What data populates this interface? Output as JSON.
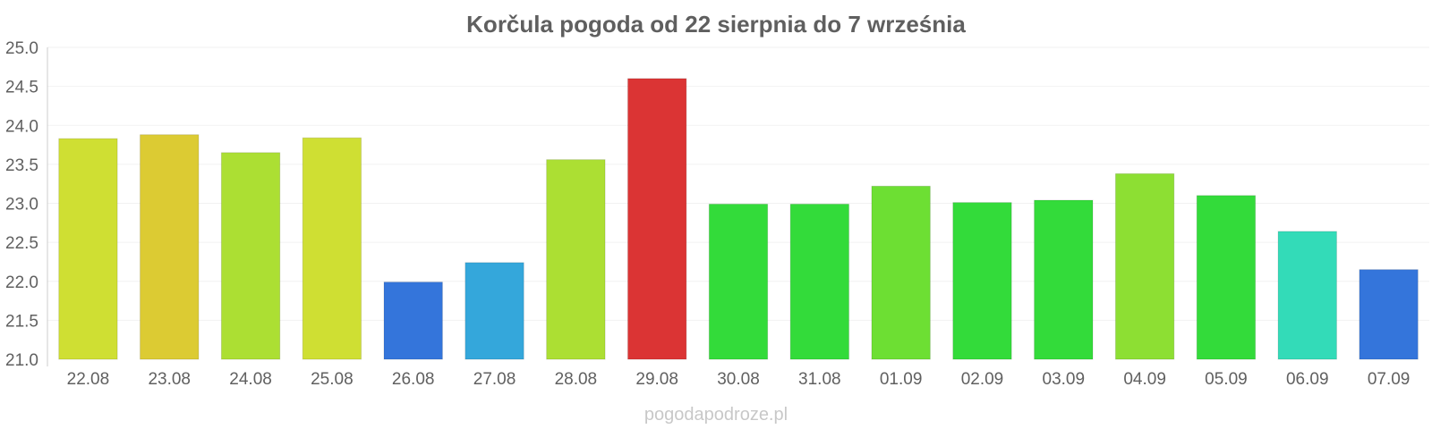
{
  "chart_data": {
    "type": "bar",
    "title": "Korčula pogoda od 22 sierpnia do 7 września",
    "xlabel": "",
    "ylabel": "",
    "ylim": [
      21.0,
      25.0
    ],
    "yticks": [
      "21.0",
      "21.5",
      "22.0",
      "22.5",
      "23.0",
      "23.5",
      "24.0",
      "24.5",
      "25.0"
    ],
    "categories": [
      "22.08",
      "23.08",
      "24.08",
      "25.08",
      "26.08",
      "27.08",
      "28.08",
      "29.08",
      "30.08",
      "31.08",
      "01.09",
      "02.09",
      "03.09",
      "04.09",
      "05.09",
      "06.09",
      "07.09"
    ],
    "values": [
      23.83,
      23.88,
      23.65,
      23.84,
      21.99,
      22.24,
      23.56,
      24.6,
      22.99,
      22.99,
      23.22,
      23.01,
      23.04,
      23.38,
      23.1,
      22.64,
      22.15
    ],
    "colors": [
      "#cfdf33",
      "#dccb33",
      "#acdf33",
      "#cfdf33",
      "#3475db",
      "#34a7db",
      "#acdf33",
      "#db3434",
      "#33db3a",
      "#33db3a",
      "#6ddf33",
      "#33db3a",
      "#33db3a",
      "#8ddf33",
      "#33db3a",
      "#33dbb8",
      "#3475db"
    ],
    "grid": true,
    "legend": "none"
  },
  "watermark": "pogodapodroze.pl"
}
